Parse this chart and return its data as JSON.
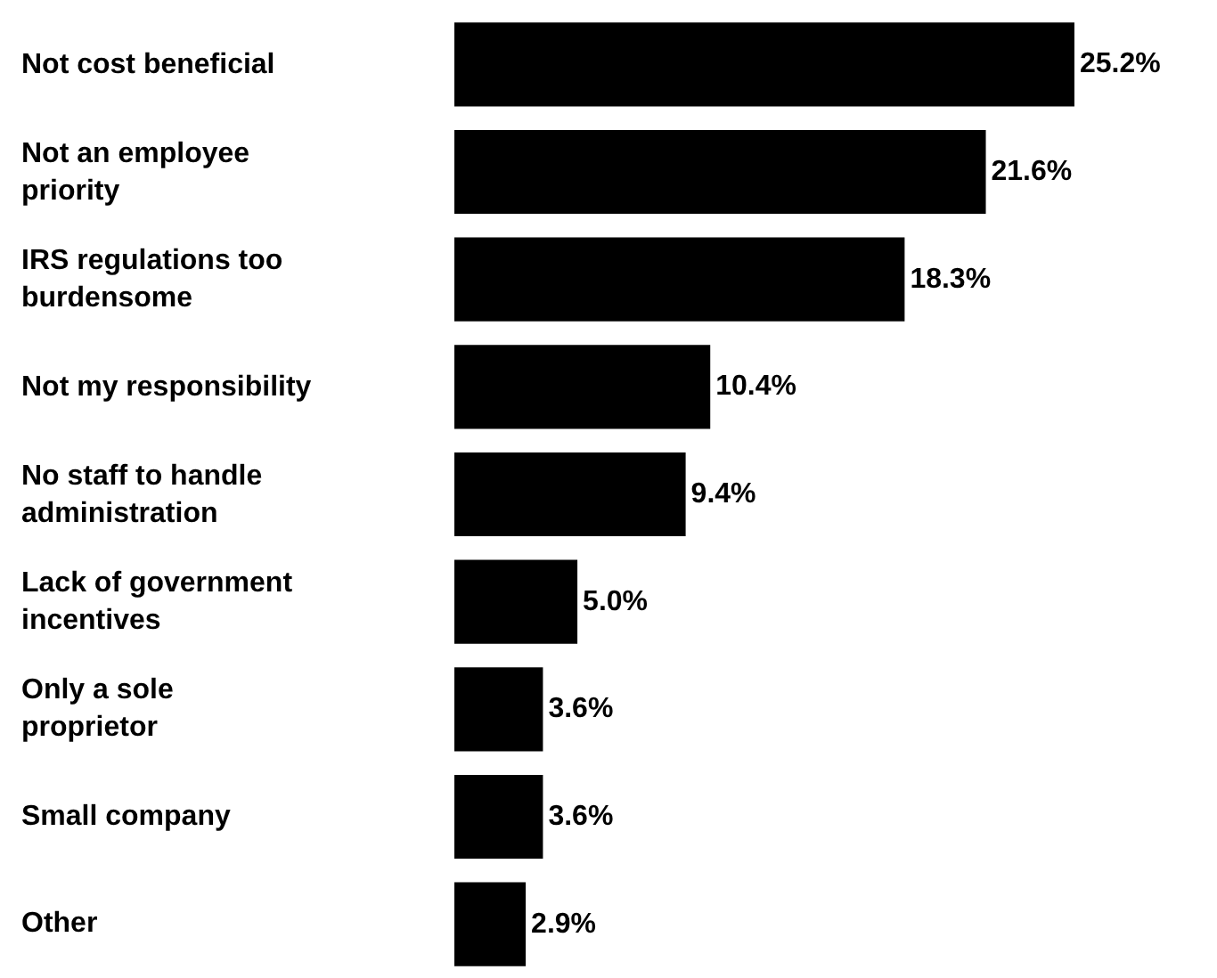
{
  "chart_data": {
    "type": "bar",
    "orientation": "horizontal",
    "data_labels": true,
    "value_labels": [
      "25.2%",
      "21.6%",
      "18.3%",
      "10.4%",
      "9.4%",
      "5.0%",
      "3.6%",
      "3.6%",
      "2.9%"
    ],
    "categories": [
      "Not cost beneficial",
      "Not an employee priority",
      "IRS regulations too burdensome",
      "Not my responsibility",
      "No staff to handle administration",
      "Lack of government incentives",
      "Only a sole proprietor",
      "Small company",
      "Other"
    ],
    "values": [
      25.2,
      21.6,
      18.3,
      10.4,
      9.4,
      5.0,
      3.6,
      3.6,
      2.9
    ],
    "color": "#000000"
  }
}
